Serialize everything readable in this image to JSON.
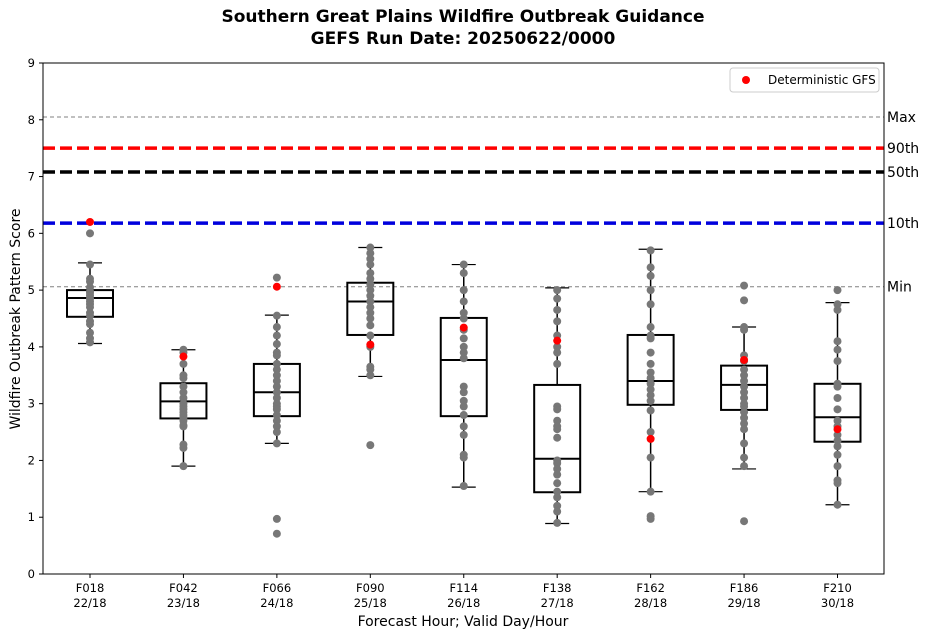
{
  "chart_data": {
    "type": "box",
    "title": "Southern Great Plains Wildfire Outbreak Guidance",
    "subtitle": "GEFS Run Date: 20250622/0000",
    "xlabel": "Forecast Hour; Valid Day/Hour",
    "ylabel": "Wildfire Outbreak Pattern Score",
    "ylim": [
      0,
      9
    ],
    "yticks": [
      "0",
      "1",
      "2",
      "3",
      "4",
      "5",
      "6",
      "7",
      "8",
      "9"
    ],
    "grid": false,
    "legend": {
      "position": "top-right",
      "entries": [
        {
          "label": "Deterministic GFS",
          "color": "#ff0000"
        }
      ]
    },
    "reference_lines": [
      {
        "name": "Max",
        "value": 8.05,
        "color": "#808080",
        "style": "dashed-thin"
      },
      {
        "name": "90th",
        "value": 7.5,
        "color": "#ff0000",
        "style": "dashed-thick"
      },
      {
        "name": "50th",
        "value": 7.08,
        "color": "#000000",
        "style": "dashed-thick"
      },
      {
        "name": "10th",
        "value": 6.18,
        "color": "#0000dd",
        "style": "dashed-thick"
      },
      {
        "name": "Min",
        "value": 5.06,
        "color": "#808080",
        "style": "dashed-thin"
      }
    ],
    "categories": [
      {
        "hour": "F018",
        "valid": "22/18",
        "q1": 4.53,
        "median": 4.86,
        "q3": 5.0,
        "whisker_low": 4.06,
        "whisker_high": 5.48,
        "deterministic": 6.2,
        "members": [
          6.0,
          5.45,
          5.2,
          5.15,
          5.05,
          4.98,
          4.95,
          4.9,
          4.85,
          4.8,
          4.75,
          4.7,
          4.6,
          4.55,
          4.45,
          4.4,
          4.25,
          4.15,
          4.08
        ]
      },
      {
        "hour": "F042",
        "valid": "23/18",
        "q1": 2.74,
        "median": 3.04,
        "q3": 3.36,
        "whisker_low": 1.9,
        "whisker_high": 3.95,
        "deterministic": 3.83,
        "members": [
          3.95,
          3.9,
          3.7,
          3.5,
          3.45,
          3.3,
          3.2,
          3.1,
          3.0,
          2.95,
          2.9,
          2.85,
          2.8,
          2.75,
          2.7,
          2.62,
          2.6,
          2.28,
          2.22,
          1.9
        ]
      },
      {
        "hour": "F066",
        "valid": "24/18",
        "q1": 2.78,
        "median": 3.2,
        "q3": 3.7,
        "whisker_low": 2.3,
        "whisker_high": 4.56,
        "deterministic": 5.06,
        "members": [
          5.22,
          4.55,
          4.35,
          4.2,
          4.05,
          3.9,
          3.85,
          3.7,
          3.6,
          3.5,
          3.4,
          3.3,
          3.2,
          3.1,
          3.0,
          2.95,
          2.9,
          2.8,
          2.7,
          2.6,
          2.5,
          2.3,
          0.97,
          0.71
        ]
      },
      {
        "hour": "F090",
        "valid": "25/18",
        "q1": 4.21,
        "median": 4.8,
        "q3": 5.13,
        "whisker_low": 3.48,
        "whisker_high": 5.75,
        "deterministic": 4.04,
        "members": [
          5.75,
          5.65,
          5.55,
          5.45,
          5.3,
          5.2,
          5.1,
          5.0,
          4.9,
          4.8,
          4.7,
          4.6,
          4.5,
          4.38,
          4.2,
          4.0,
          3.65,
          3.6,
          3.5,
          2.27
        ]
      },
      {
        "hour": "F114",
        "valid": "26/18",
        "q1": 2.78,
        "median": 3.77,
        "q3": 4.51,
        "whisker_low": 1.53,
        "whisker_high": 5.45,
        "deterministic": 4.34,
        "members": [
          5.45,
          5.3,
          5.0,
          4.8,
          4.6,
          4.5,
          4.3,
          4.15,
          4.0,
          3.9,
          3.8,
          3.3,
          3.2,
          3.05,
          2.95,
          2.8,
          2.6,
          2.45,
          2.1,
          2.05,
          1.55
        ]
      },
      {
        "hour": "F138",
        "valid": "27/18",
        "q1": 1.44,
        "median": 2.03,
        "q3": 3.33,
        "whisker_low": 0.89,
        "whisker_high": 5.04,
        "deterministic": 4.11,
        "members": [
          5.0,
          4.85,
          4.65,
          4.45,
          4.2,
          4.0,
          3.9,
          3.7,
          2.95,
          2.9,
          2.7,
          2.6,
          2.55,
          2.4,
          2.0,
          1.95,
          1.85,
          1.75,
          1.6,
          1.45,
          1.35,
          1.2,
          1.1,
          0.9
        ]
      },
      {
        "hour": "F162",
        "valid": "28/18",
        "q1": 2.98,
        "median": 3.4,
        "q3": 4.21,
        "whisker_low": 1.45,
        "whisker_high": 5.72,
        "deterministic": 2.38,
        "members": [
          5.7,
          5.4,
          5.25,
          5.0,
          4.75,
          4.35,
          4.2,
          4.15,
          3.9,
          3.7,
          3.55,
          3.45,
          3.35,
          3.25,
          3.15,
          3.05,
          2.88,
          2.5,
          2.05,
          1.45,
          1.02,
          0.97
        ]
      },
      {
        "hour": "F186",
        "valid": "29/18",
        "q1": 2.89,
        "median": 3.33,
        "q3": 3.67,
        "whisker_low": 1.85,
        "whisker_high": 4.35,
        "deterministic": 3.77,
        "members": [
          5.08,
          4.82,
          4.35,
          4.3,
          3.85,
          3.75,
          3.6,
          3.5,
          3.4,
          3.3,
          3.2,
          3.1,
          3.0,
          2.95,
          2.85,
          2.75,
          2.65,
          2.55,
          2.3,
          2.05,
          1.9,
          0.93
        ]
      },
      {
        "hour": "F210",
        "valid": "30/18",
        "q1": 2.33,
        "median": 2.76,
        "q3": 3.35,
        "whisker_low": 1.22,
        "whisker_high": 4.78,
        "deterministic": 2.55,
        "members": [
          5.0,
          4.75,
          4.65,
          4.1,
          3.95,
          3.75,
          3.35,
          3.3,
          3.1,
          2.9,
          2.7,
          2.6,
          2.45,
          2.35,
          2.25,
          2.1,
          1.9,
          1.65,
          1.6,
          1.22
        ]
      }
    ]
  }
}
